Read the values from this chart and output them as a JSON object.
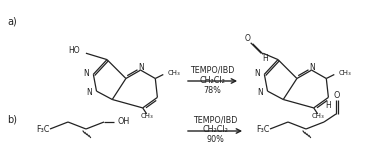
{
  "background_color": "#ffffff",
  "line_color": "#222222",
  "label_a": "a)",
  "label_b": "b)",
  "reaction_a_above": "TEMPO/IBD",
  "reaction_a_below1": "CH₂Cl₂",
  "reaction_a_below2": "78%",
  "reaction_b_above": "TEMPO/IBD",
  "reaction_b_below1": "CH₂Cl₂",
  "reaction_b_below2": "90%",
  "figsize": [
    3.74,
    1.61
  ],
  "dpi": 100
}
